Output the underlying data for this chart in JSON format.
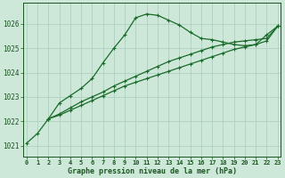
{
  "title": "Graphe pression niveau de la mer (hPa)",
  "background_color": "#cde8d8",
  "grid_color": "#a8ccbb",
  "line_color": "#1a6b2a",
  "x_ticks": [
    0,
    1,
    2,
    3,
    4,
    5,
    6,
    7,
    8,
    9,
    10,
    11,
    12,
    13,
    14,
    15,
    16,
    17,
    18,
    19,
    20,
    21,
    22,
    23
  ],
  "xlim": [
    -0.3,
    23.3
  ],
  "ylim": [
    1020.55,
    1026.85
  ],
  "yticks": [
    1021,
    1022,
    1023,
    1024,
    1025,
    1026
  ],
  "line1_x": [
    0,
    1,
    2,
    3,
    4,
    5,
    6,
    7,
    8,
    9,
    10,
    11,
    12,
    13,
    14,
    15,
    16,
    17,
    18,
    19,
    20,
    21,
    22,
    23
  ],
  "line1_y": [
    1021.1,
    1021.5,
    1022.1,
    1022.75,
    1023.05,
    1023.35,
    1023.75,
    1024.4,
    1025.0,
    1025.55,
    1026.25,
    1026.4,
    1026.35,
    1026.15,
    1025.95,
    1025.65,
    1025.4,
    1025.35,
    1025.25,
    1025.15,
    1025.1,
    1025.15,
    1025.55,
    1025.9
  ],
  "line2_x": [
    2,
    3,
    4,
    5,
    6,
    7,
    8,
    9,
    10,
    11,
    12,
    13,
    14,
    15,
    16,
    17,
    18,
    19,
    20,
    21,
    22,
    23
  ],
  "line2_y": [
    1022.1,
    1022.3,
    1022.55,
    1022.8,
    1023.0,
    1023.2,
    1023.45,
    1023.65,
    1023.85,
    1024.05,
    1024.25,
    1024.45,
    1024.6,
    1024.75,
    1024.9,
    1025.05,
    1025.15,
    1025.25,
    1025.3,
    1025.35,
    1025.4,
    1025.9
  ],
  "line3_x": [
    2,
    3,
    4,
    5,
    6,
    7,
    8,
    9,
    10,
    11,
    12,
    13,
    14,
    15,
    16,
    17,
    18,
    19,
    20,
    21,
    22,
    23
  ],
  "line3_y": [
    1022.1,
    1022.25,
    1022.45,
    1022.65,
    1022.85,
    1023.05,
    1023.25,
    1023.45,
    1023.6,
    1023.75,
    1023.9,
    1024.05,
    1024.2,
    1024.35,
    1024.5,
    1024.65,
    1024.8,
    1024.95,
    1025.05,
    1025.15,
    1025.3,
    1025.9
  ],
  "tick_fontsize": 5,
  "label_fontsize": 6,
  "line_width": 0.9,
  "marker_size": 3
}
